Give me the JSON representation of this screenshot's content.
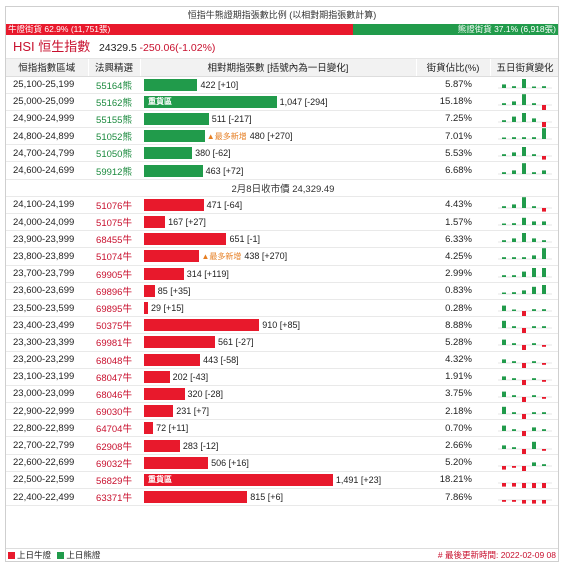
{
  "title": "恒指牛熊證期指張數比例 (以相對期指張數計算)",
  "ratio": {
    "bull_label": "牛證街貨 62.9% (11,751張)",
    "bull_fraction": 0.629,
    "bear_label": "熊證街貨 37.1% (6,918張)"
  },
  "hsi": {
    "name": "HSI 恒生指數",
    "price": "24329.5",
    "change": "-250.06(-1.02%)"
  },
  "headers": {
    "range": "恒指指數區域",
    "code": "法興精選",
    "contracts": "相對期指張數 [括號內為一日變化]",
    "pct": "街貨佔比(%)",
    "five_day": "五日街貨變化"
  },
  "badge_text": "重貨區",
  "new_text": "▲最多新增",
  "mid_text": "2月8日收市價 24,329.49",
  "bear_rows": [
    {
      "range": "25,100-25,199",
      "code": "55164熊",
      "value": 422,
      "label": "422 [+10]",
      "pct": "5.87%",
      "badge": false,
      "new": false,
      "spark": [
        2,
        1,
        5,
        0,
        1
      ]
    },
    {
      "range": "25,000-25,099",
      "code": "55162熊",
      "value": 1047,
      "label": "1,047 [-294]",
      "pct": "15.18%",
      "badge": true,
      "new": false,
      "spark": [
        1,
        2,
        6,
        1,
        -3
      ]
    },
    {
      "range": "24,900-24,999",
      "code": "55155熊",
      "value": 511,
      "label": "511 [-217]",
      "pct": "7.25%",
      "badge": false,
      "new": false,
      "spark": [
        1,
        3,
        5,
        2,
        -3
      ]
    },
    {
      "range": "24,800-24,899",
      "code": "51052熊",
      "value": 480,
      "label": "480 [+270]",
      "pct": "7.01%",
      "badge": false,
      "new": true,
      "spark": [
        0,
        1,
        1,
        1,
        6
      ]
    },
    {
      "range": "24,700-24,799",
      "code": "51050熊",
      "value": 380,
      "label": "380 [-62]",
      "pct": "5.53%",
      "badge": false,
      "new": false,
      "spark": [
        1,
        2,
        5,
        1,
        -2
      ]
    },
    {
      "range": "24,600-24,699",
      "code": "59912熊",
      "value": 463,
      "label": "463 [+72]",
      "pct": "6.68%",
      "badge": false,
      "new": false,
      "spark": [
        1,
        2,
        6,
        1,
        2
      ]
    }
  ],
  "bull_rows": [
    {
      "range": "24,100-24,199",
      "code": "51076牛",
      "value": 471,
      "label": "471 [-64]",
      "pct": "4.43%",
      "badge": false,
      "new": false,
      "spark": [
        1,
        2,
        6,
        1,
        -2
      ]
    },
    {
      "range": "24,000-24,099",
      "code": "51075牛",
      "value": 167,
      "label": "167 [+27]",
      "pct": "1.57%",
      "badge": false,
      "new": false,
      "spark": [
        0,
        1,
        4,
        2,
        2
      ]
    },
    {
      "range": "23,900-23,999",
      "code": "68455牛",
      "value": 651,
      "label": "651 [-1]",
      "pct": "6.33%",
      "badge": false,
      "new": false,
      "spark": [
        1,
        2,
        5,
        2,
        1
      ]
    },
    {
      "range": "23,800-23,899",
      "code": "51074牛",
      "value": 438,
      "label": "438 [+270]",
      "pct": "4.25%",
      "badge": false,
      "new": true,
      "spark": [
        1,
        1,
        1,
        2,
        6
      ]
    },
    {
      "range": "23,700-23,799",
      "code": "69905牛",
      "value": 314,
      "label": "314 [+119]",
      "pct": "2.99%",
      "badge": false,
      "new": false,
      "spark": [
        1,
        1,
        3,
        5,
        5
      ]
    },
    {
      "range": "23,600-23,699",
      "code": "69896牛",
      "value": 85,
      "label": "85 [+35]",
      "pct": "0.83%",
      "badge": false,
      "new": false,
      "spark": [
        0,
        1,
        2,
        4,
        5
      ]
    },
    {
      "range": "23,500-23,599",
      "code": "69895牛",
      "value": 29,
      "label": "29 [+15]",
      "pct": "0.28%",
      "badge": false,
      "new": false,
      "spark": [
        3,
        0,
        -5,
        1,
        1
      ]
    },
    {
      "range": "23,400-23,499",
      "code": "50375牛",
      "value": 910,
      "label": "910 [+85]",
      "pct": "8.88%",
      "badge": false,
      "new": false,
      "spark": [
        4,
        1,
        -6,
        1,
        1
      ]
    },
    {
      "range": "23,300-23,399",
      "code": "69981牛",
      "value": 561,
      "label": "561 [-27]",
      "pct": "5.28%",
      "badge": false,
      "new": false,
      "spark": [
        3,
        1,
        -6,
        1,
        -1
      ]
    },
    {
      "range": "23,200-23,299",
      "code": "68048牛",
      "value": 443,
      "label": "443 [-58]",
      "pct": "4.32%",
      "badge": false,
      "new": false,
      "spark": [
        2,
        1,
        -6,
        1,
        -1
      ]
    },
    {
      "range": "23,100-23,199",
      "code": "68047牛",
      "value": 202,
      "label": "202 [-43]",
      "pct": "1.91%",
      "badge": false,
      "new": false,
      "spark": [
        2,
        1,
        -5,
        1,
        -1
      ]
    },
    {
      "range": "23,000-23,099",
      "code": "68046牛",
      "value": 320,
      "label": "320 [-28]",
      "pct": "3.75%",
      "badge": false,
      "new": false,
      "spark": [
        3,
        1,
        -6,
        1,
        -1
      ]
    },
    {
      "range": "22,900-22,999",
      "code": "69030牛",
      "value": 231,
      "label": "231 [+7]",
      "pct": "2.18%",
      "badge": false,
      "new": false,
      "spark": [
        4,
        1,
        -4,
        1,
        1
      ]
    },
    {
      "range": "22,800-22,899",
      "code": "64704牛",
      "value": 72,
      "label": "72 [+11]",
      "pct": "0.70%",
      "badge": false,
      "new": false,
      "spark": [
        3,
        1,
        -5,
        2,
        1
      ]
    },
    {
      "range": "22,700-22,799",
      "code": "62908牛",
      "value": 283,
      "label": "283 [-12]",
      "pct": "2.66%",
      "badge": false,
      "new": false,
      "spark": [
        2,
        1,
        -5,
        4,
        -1
      ]
    },
    {
      "range": "22,600-22,699",
      "code": "69032牛",
      "value": 506,
      "label": "506 [+16]",
      "pct": "5.20%",
      "badge": false,
      "new": false,
      "spark": [
        -2,
        -1,
        -4,
        2,
        1
      ]
    },
    {
      "range": "22,500-22,599",
      "code": "56829牛",
      "value": 1491,
      "label": "1,491 [+23]",
      "pct": "18.21%",
      "badge": true,
      "new": false,
      "spark": [
        -2,
        -2,
        -4,
        -3,
        -3
      ]
    },
    {
      "range": "22,400-22,499",
      "code": "63371牛",
      "value": 815,
      "label": "815 [+6]",
      "pct": "7.86%",
      "badge": false,
      "new": false,
      "spark": [
        -1,
        -1,
        -2,
        -2,
        -2
      ]
    }
  ],
  "footer": {
    "bull_legend": "上日牛證",
    "bear_legend": "上日熊證",
    "updated": "# 最後更新時間: 2022-02-09 08"
  },
  "colors": {
    "bull": "#e8192c",
    "bear": "#219b4b"
  }
}
